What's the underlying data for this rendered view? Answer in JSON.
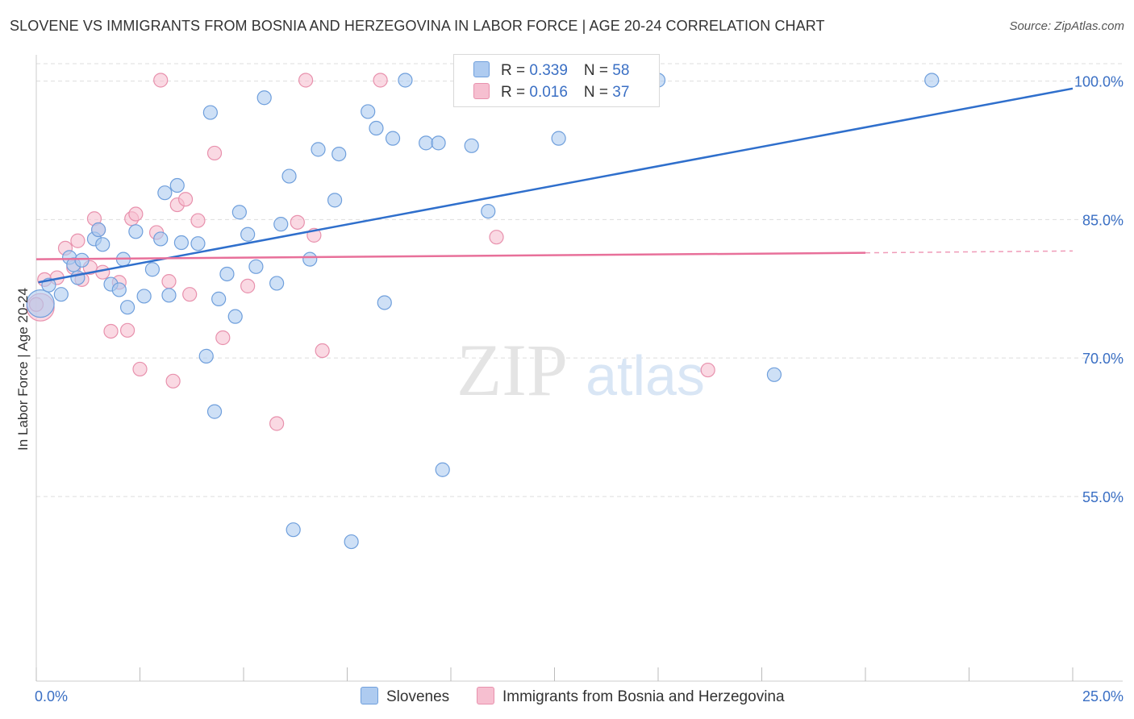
{
  "title": "SLOVENE VS IMMIGRANTS FROM BOSNIA AND HERZEGOVINA IN LABOR FORCE | AGE 20-24 CORRELATION CHART",
  "source": "Source: ZipAtlas.com",
  "watermark": {
    "zip": "ZIP",
    "atlas": "atlas"
  },
  "legend": {
    "rows": [
      {
        "r_label": "R = ",
        "r_value": "0.339",
        "n_label": "N = ",
        "n_value": "58"
      },
      {
        "r_label": "R = ",
        "r_value": "0.016",
        "n_label": "N = ",
        "n_value": "37"
      }
    ]
  },
  "colors": {
    "blue_fill": "#aecbf0",
    "blue_stroke": "#6f9fdc",
    "blue_line": "#2f6fcc",
    "pink_fill": "#f6bfd0",
    "pink_stroke": "#e891ad",
    "pink_line": "#e8709a",
    "tick_text": "#3a6fc4",
    "grid": "#dddddd"
  },
  "chart_data": {
    "type": "scatter",
    "ylabel": "In Labor Force | Age 20-24",
    "xlim": [
      0,
      25
    ],
    "ylim": [
      35,
      102.5
    ],
    "x_tick_labels": [
      {
        "value": 0,
        "label": "0.0%"
      },
      {
        "value": 25,
        "label": "25.0%"
      }
    ],
    "y_tick_labels": [
      {
        "value": 100,
        "label": "100.0%"
      },
      {
        "value": 85,
        "label": "85.0%"
      },
      {
        "value": 70,
        "label": "70.0%"
      },
      {
        "value": 55,
        "label": "55.0%"
      }
    ],
    "series": [
      {
        "name": "Slovenes",
        "color": "blue",
        "trend": {
          "x0": 0.05,
          "y0": 78.2,
          "x1": 25.0,
          "y1": 99.2
        },
        "points": [
          [
            0.1,
            75.9
          ],
          [
            0.3,
            77.9
          ],
          [
            0.6,
            76.9
          ],
          [
            0.8,
            80.9
          ],
          [
            0.9,
            80.1
          ],
          [
            1.0,
            78.7
          ],
          [
            1.1,
            80.6
          ],
          [
            1.4,
            82.9
          ],
          [
            1.5,
            83.9
          ],
          [
            1.6,
            82.3
          ],
          [
            1.8,
            78.0
          ],
          [
            2.0,
            77.4
          ],
          [
            2.1,
            80.7
          ],
          [
            2.2,
            75.5
          ],
          [
            2.4,
            83.7
          ],
          [
            2.6,
            76.7
          ],
          [
            2.8,
            79.6
          ],
          [
            3.0,
            82.9
          ],
          [
            3.1,
            87.9
          ],
          [
            3.2,
            76.8
          ],
          [
            3.4,
            88.7
          ],
          [
            3.5,
            82.5
          ],
          [
            3.9,
            82.4
          ],
          [
            4.1,
            70.2
          ],
          [
            4.2,
            96.6
          ],
          [
            4.3,
            64.2
          ],
          [
            4.4,
            76.4
          ],
          [
            4.6,
            79.1
          ],
          [
            4.8,
            74.5
          ],
          [
            4.9,
            85.8
          ],
          [
            5.1,
            83.4
          ],
          [
            5.3,
            79.9
          ],
          [
            5.5,
            98.2
          ],
          [
            5.8,
            78.1
          ],
          [
            5.9,
            84.5
          ],
          [
            6.1,
            89.7
          ],
          [
            6.2,
            51.4
          ],
          [
            6.6,
            80.7
          ],
          [
            6.8,
            92.6
          ],
          [
            7.2,
            87.1
          ],
          [
            7.3,
            92.1
          ],
          [
            7.6,
            50.1
          ],
          [
            8.0,
            96.7
          ],
          [
            8.2,
            94.9
          ],
          [
            8.4,
            76.0
          ],
          [
            8.6,
            93.8
          ],
          [
            8.9,
            100.1
          ],
          [
            9.4,
            93.3
          ],
          [
            9.7,
            93.3
          ],
          [
            9.8,
            57.9
          ],
          [
            10.5,
            93.0
          ],
          [
            10.9,
            85.9
          ],
          [
            12.0,
            100.1
          ],
          [
            12.6,
            93.8
          ],
          [
            15.0,
            100.1
          ],
          [
            17.8,
            68.2
          ],
          [
            21.6,
            100.1
          ],
          [
            11.5,
            100.1
          ]
        ]
      },
      {
        "name": "Immigrants from Bosnia and Herzegovina",
        "color": "pink",
        "trend": {
          "x0": 0.0,
          "y0": 80.7,
          "x1": 20.0,
          "y1": 81.4,
          "dash_to_x": 25.0,
          "dash_to_y": 81.6
        },
        "points": [
          [
            0.1,
            75.5
          ],
          [
            0.2,
            78.5
          ],
          [
            0.5,
            78.7
          ],
          [
            0.7,
            81.9
          ],
          [
            0.9,
            79.8
          ],
          [
            1.0,
            82.7
          ],
          [
            1.1,
            78.5
          ],
          [
            1.3,
            79.8
          ],
          [
            1.4,
            85.1
          ],
          [
            1.5,
            83.9
          ],
          [
            1.6,
            79.3
          ],
          [
            1.8,
            72.9
          ],
          [
            2.0,
            78.2
          ],
          [
            2.2,
            73.0
          ],
          [
            2.3,
            85.1
          ],
          [
            2.4,
            85.6
          ],
          [
            2.5,
            68.8
          ],
          [
            2.9,
            83.6
          ],
          [
            3.0,
            100.1
          ],
          [
            3.2,
            78.3
          ],
          [
            3.3,
            67.5
          ],
          [
            3.4,
            86.6
          ],
          [
            3.6,
            87.2
          ],
          [
            3.7,
            76.9
          ],
          [
            3.9,
            84.9
          ],
          [
            4.3,
            92.2
          ],
          [
            4.5,
            72.2
          ],
          [
            5.1,
            77.8
          ],
          [
            5.8,
            62.9
          ],
          [
            6.3,
            84.7
          ],
          [
            6.5,
            100.1
          ],
          [
            6.7,
            83.3
          ],
          [
            6.9,
            70.8
          ],
          [
            8.3,
            100.1
          ],
          [
            11.1,
            83.1
          ],
          [
            16.2,
            68.7
          ],
          [
            0.0,
            75.8
          ]
        ]
      }
    ]
  }
}
